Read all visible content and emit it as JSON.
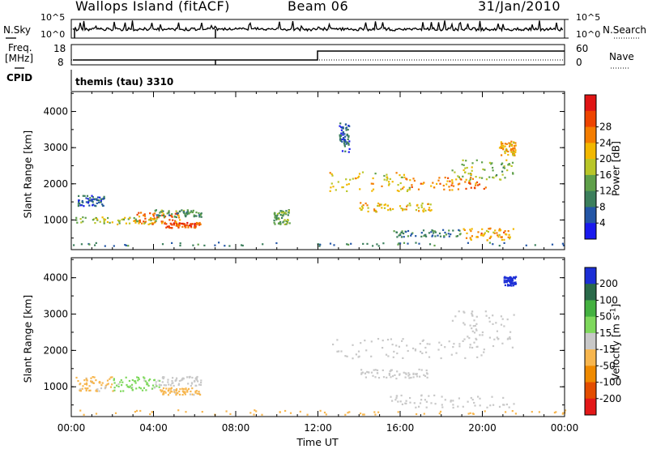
{
  "header": {
    "station": "Wallops Island (fitACF)",
    "beam": "Beam 06",
    "date": "31/Jan/2010"
  },
  "nsky_panel": {
    "left_label": "N.Sky",
    "left_ticks": [
      "10^5",
      "10^0"
    ],
    "right_ticks": [
      "10^5",
      "10^0"
    ],
    "right_label": "N.Search"
  },
  "freq_panel": {
    "left_label_line1": "Freq.",
    "left_label_line2": "[MHz]",
    "left_ticks": [
      "18",
      "8"
    ],
    "right_ticks": [
      "60",
      "0"
    ],
    "right_label": "Nave"
  },
  "cpid_panel": {
    "label": "CPID",
    "program": "themis (tau) 3310"
  },
  "colors": {
    "power_scale": [
      "#1a1aee",
      "#2456a6",
      "#3c7f5c",
      "#5fa04a",
      "#b9c628",
      "#f2b800",
      "#f47d00",
      "#ee4400",
      "#e01414"
    ],
    "velocity_scale": [
      "#1c2fd6",
      "#2a6a4a",
      "#44b140",
      "#7ed85c",
      "#c8c8c8",
      "#f7b64e",
      "#ef8a00",
      "#e34d00",
      "#e31818"
    ]
  },
  "chart_data": [
    {
      "type": "heatmap",
      "quantity": "Power",
      "ylabel": "Slant Range [km]",
      "xlabel": "Time UT",
      "x_ticks": [
        "00:00",
        "04:00",
        "08:00",
        "12:00",
        "16:00",
        "20:00",
        "00:00"
      ],
      "x_range_hours": [
        0,
        24
      ],
      "y_ticks": [
        1000,
        2000,
        3000,
        4000
      ],
      "y_range_km": [
        180,
        4550
      ],
      "colorbar": {
        "label": "Power [dB]",
        "ticks": [
          4,
          8,
          12,
          16,
          20,
          24,
          28
        ],
        "range": [
          0,
          30
        ]
      },
      "echo_regions": [
        {
          "t": [
            0.2,
            4.3
          ],
          "r": [
            900,
            1100
          ],
          "value": 14
        },
        {
          "t": [
            3.0,
            5.3
          ],
          "r": [
            900,
            1250
          ],
          "value": 22
        },
        {
          "t": [
            4.5,
            6.3
          ],
          "r": [
            800,
            950
          ],
          "value": 25
        },
        {
          "t": [
            4.0,
            6.3
          ],
          "r": [
            1100,
            1300
          ],
          "value": 10
        },
        {
          "t": [
            0.3,
            1.6
          ],
          "r": [
            1400,
            1700
          ],
          "value": 6
        },
        {
          "t": [
            12.5,
            16.5
          ],
          "r": [
            1800,
            2350
          ],
          "value": 17
        },
        {
          "t": [
            16.0,
            20.2
          ],
          "r": [
            1850,
            2200
          ],
          "value": 22
        },
        {
          "t": [
            14.0,
            17.5
          ],
          "r": [
            1250,
            1500
          ],
          "value": 18
        },
        {
          "t": [
            18.5,
            21.5
          ],
          "r": [
            2100,
            2700
          ],
          "value": 13
        },
        {
          "t": [
            20.8,
            21.6
          ],
          "r": [
            2800,
            3200
          ],
          "value": 19
        },
        {
          "t": [
            19.0,
            21.5
          ],
          "r": [
            450,
            800
          ],
          "value": 20
        },
        {
          "t": [
            15.5,
            19.0
          ],
          "r": [
            550,
            750
          ],
          "value": 8
        },
        {
          "t": [
            0.0,
            24.0
          ],
          "r": [
            300,
            400
          ],
          "value": 7
        },
        {
          "t": [
            13.0,
            13.5
          ],
          "r": [
            2900,
            3700
          ],
          "value": 6
        },
        {
          "t": [
            9.8,
            10.6
          ],
          "r": [
            900,
            1300
          ],
          "value": 11
        }
      ]
    },
    {
      "type": "heatmap",
      "quantity": "Velocity",
      "ylabel": "Slant Range [km]",
      "xlabel": "Time UT",
      "x_ticks": [
        "00:00",
        "04:00",
        "08:00",
        "12:00",
        "16:00",
        "20:00",
        "00:00"
      ],
      "x_range_hours": [
        0,
        24
      ],
      "y_ticks": [
        1000,
        2000,
        3000,
        4000
      ],
      "y_range_km": [
        180,
        4550
      ],
      "colorbar": {
        "label": "Velocity [m s-1]",
        "ticks": [
          200,
          100,
          50,
          15,
          -15,
          -50,
          -100,
          -200
        ],
        "range": [
          -250,
          250
        ]
      },
      "echo_regions": [
        {
          "t": [
            0.2,
            2.0
          ],
          "r": [
            900,
            1300
          ],
          "value": -40
        },
        {
          "t": [
            2.0,
            4.3
          ],
          "r": [
            900,
            1300
          ],
          "value": 40
        },
        {
          "t": [
            4.3,
            6.3
          ],
          "r": [
            800,
            1000
          ],
          "value": -40
        },
        {
          "t": [
            4.0,
            6.3
          ],
          "r": [
            1050,
            1300
          ],
          "value": 0
        },
        {
          "t": [
            12.5,
            20.5
          ],
          "r": [
            1800,
            2350
          ],
          "value": 0
        },
        {
          "t": [
            14.0,
            17.5
          ],
          "r": [
            1250,
            1500
          ],
          "value": 0
        },
        {
          "t": [
            18.5,
            21.5
          ],
          "r": [
            2100,
            3100
          ],
          "value": 0
        },
        {
          "t": [
            15.5,
            21.5
          ],
          "r": [
            450,
            800
          ],
          "value": 0
        },
        {
          "t": [
            21.0,
            21.6
          ],
          "r": [
            3800,
            4050
          ],
          "value": 220
        },
        {
          "t": [
            0.0,
            24.0
          ],
          "r": [
            250,
            380
          ],
          "value": -60
        }
      ]
    }
  ]
}
